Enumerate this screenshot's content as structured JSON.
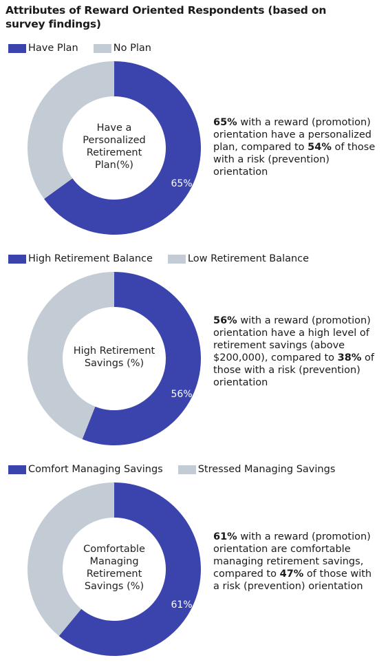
{
  "title": "Attributes of Reward Oriented Respondents (based on survey findings)",
  "colors": {
    "primary": "#3b44ad",
    "secondary": "#c3cbd5"
  },
  "chart_data": [
    {
      "type": "pie",
      "legend": [
        "Have Plan",
        "No Plan"
      ],
      "values": [
        65,
        35
      ],
      "center_label_lines": [
        "Have a",
        "Personalized",
        "Retirement",
        "Plan(%)"
      ],
      "value_label": "65%",
      "description": {
        "part1_bold": "65%",
        "part1": " with a reward (promotion) orientation have a personalized plan, compared to ",
        "part2_bold": "54%",
        "part2": " of those with a risk (prevention) orientation"
      }
    },
    {
      "type": "pie",
      "legend": [
        "High Retirement Balance",
        "Low Retirement Balance"
      ],
      "values": [
        56,
        44
      ],
      "center_label_lines": [
        "High Retirement",
        "Savings (%)"
      ],
      "value_label": "56%",
      "description": {
        "part1_bold": "56%",
        "part1": " with a reward (promotion) orientation have a high level of retirement savings (above $200,000), compared to ",
        "part2_bold": "38%",
        "part2": " of those with a risk (prevention) orientation"
      }
    },
    {
      "type": "pie",
      "legend": [
        "Comfort Managing Savings",
        "Stressed Managing Savings"
      ],
      "values": [
        61,
        39
      ],
      "center_label_lines": [
        "Comfortable",
        "Managing",
        "Retirement",
        "Savings (%)"
      ],
      "value_label": "61%",
      "description": {
        "part1_bold": "61%",
        "part1": " with a reward (promotion) orientation are comfortable managing retirement savings, compared to ",
        "part2_bold": "47%",
        "part2": " of those with a risk (prevention) orientation"
      }
    }
  ]
}
